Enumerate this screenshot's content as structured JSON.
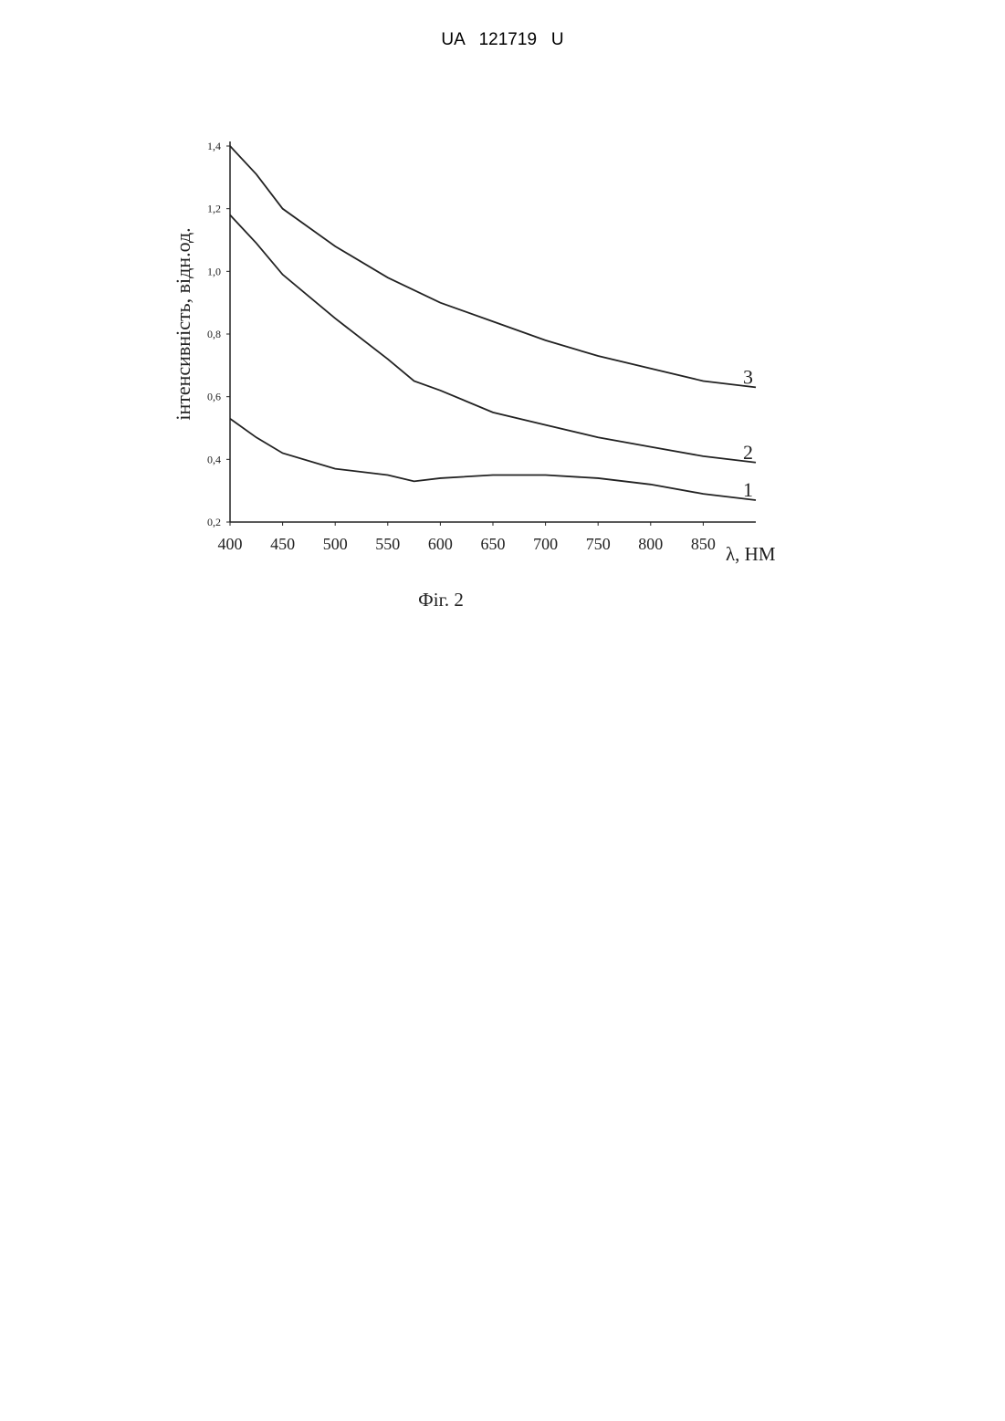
{
  "header": "UA   121719   U",
  "chart_data": {
    "type": "line",
    "x_label": "λ, НМ",
    "y_label": "інтенсивність, відн.од.",
    "caption": "Фіг. 2",
    "xlim": [
      400,
      900
    ],
    "ylim": [
      0.2,
      1.4
    ],
    "xticks": [
      400,
      450,
      500,
      550,
      600,
      650,
      700,
      750,
      800,
      850
    ],
    "yticks": [
      {
        "value": 0.2,
        "label": "0,2"
      },
      {
        "value": 0.4,
        "label": "0,4"
      },
      {
        "value": 0.6,
        "label": "0,6"
      },
      {
        "value": 0.8,
        "label": "0,8"
      },
      {
        "value": 1.0,
        "label": "1,0"
      },
      {
        "value": 1.2,
        "label": "1,2"
      },
      {
        "value": 1.4,
        "label": "1,4"
      }
    ],
    "grid": false,
    "x": [
      400,
      425,
      450,
      500,
      550,
      575,
      600,
      650,
      700,
      750,
      800,
      850,
      900
    ],
    "series": [
      {
        "name": "1",
        "color": "#222222",
        "values": [
          0.53,
          0.47,
          0.42,
          0.37,
          0.35,
          0.33,
          0.34,
          0.35,
          0.35,
          0.34,
          0.32,
          0.29,
          0.27
        ]
      },
      {
        "name": "2",
        "color": "#222222",
        "values": [
          1.18,
          1.09,
          0.99,
          0.85,
          0.72,
          0.65,
          0.62,
          0.55,
          0.51,
          0.47,
          0.44,
          0.41,
          0.39
        ]
      },
      {
        "name": "3",
        "color": "#222222",
        "values": [
          1.4,
          1.31,
          1.2,
          1.08,
          0.98,
          0.94,
          0.9,
          0.84,
          0.78,
          0.73,
          0.69,
          0.65,
          0.63
        ]
      }
    ]
  }
}
